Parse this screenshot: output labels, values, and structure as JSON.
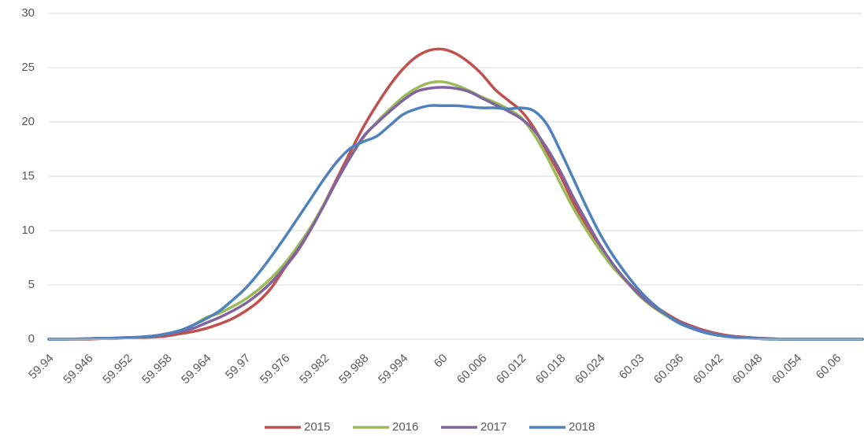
{
  "chart_data": {
    "type": "line",
    "categories": [
      "59.94",
      null,
      null,
      "59.946",
      null,
      null,
      "59.952",
      null,
      null,
      "59.958",
      null,
      null,
      "59.964",
      null,
      null,
      "59.97",
      null,
      null,
      "59.976",
      null,
      null,
      "59.982",
      null,
      null,
      "59.988",
      null,
      null,
      "59.994",
      null,
      null,
      "60",
      null,
      null,
      "60.006",
      null,
      null,
      "60.012",
      null,
      null,
      "60.018",
      null,
      null,
      "60.024",
      null,
      null,
      "60.03",
      null,
      null,
      "60.036",
      null,
      null,
      "60.042",
      null,
      null,
      "60.048",
      null,
      null,
      "60.054",
      null,
      null,
      "60.06",
      null,
      null
    ],
    "series": [
      {
        "name": "2015",
        "color": "#c0504d",
        "values": [
          0,
          0,
          0,
          0,
          0.05,
          0.05,
          0.1,
          0.15,
          0.2,
          0.3,
          0.5,
          0.7,
          1.0,
          1.4,
          1.9,
          2.6,
          3.5,
          4.8,
          6.6,
          8.2,
          10.2,
          12.5,
          14.9,
          17.3,
          19.6,
          21.6,
          23.4,
          24.9,
          26.0,
          26.6,
          26.7,
          26.3,
          25.5,
          24.4,
          23.0,
          22.0,
          21.0,
          19.4,
          17.2,
          15.0,
          12.5,
          10.3,
          8.4,
          6.8,
          5.4,
          4.2,
          3.2,
          2.4,
          1.7,
          1.2,
          0.8,
          0.5,
          0.3,
          0.2,
          0.1,
          0.05,
          0,
          0,
          0,
          0,
          0,
          0,
          0
        ]
      },
      {
        "name": "2016",
        "color": "#9bbb59",
        "values": [
          0,
          0,
          0.02,
          0.05,
          0.08,
          0.1,
          0.15,
          0.2,
          0.3,
          0.5,
          0.8,
          1.3,
          2.0,
          2.4,
          3.0,
          3.7,
          4.6,
          5.7,
          7.0,
          8.6,
          10.4,
          12.5,
          14.7,
          16.8,
          18.6,
          20.0,
          21.2,
          22.3,
          23.1,
          23.6,
          23.7,
          23.4,
          22.9,
          22.3,
          21.8,
          21.2,
          20.4,
          18.8,
          16.7,
          14.3,
          12.0,
          10.0,
          8.2,
          6.6,
          5.3,
          4.0,
          3.0,
          2.2,
          1.5,
          1.0,
          0.7,
          0.4,
          0.25,
          0.15,
          0.1,
          0.05,
          0,
          0,
          0,
          0,
          0,
          0,
          0
        ]
      },
      {
        "name": "2017",
        "color": "#8064a2",
        "values": [
          0,
          0,
          0.02,
          0.05,
          0.08,
          0.1,
          0.15,
          0.2,
          0.3,
          0.5,
          0.7,
          1.0,
          1.5,
          2.0,
          2.6,
          3.3,
          4.2,
          5.3,
          6.7,
          8.3,
          10.2,
          12.4,
          14.7,
          16.8,
          18.7,
          19.9,
          21.0,
          22.0,
          22.8,
          23.1,
          23.2,
          23.1,
          22.8,
          22.2,
          21.6,
          21.0,
          20.3,
          19.2,
          17.5,
          15.4,
          13.0,
          10.8,
          8.7,
          6.9,
          5.4,
          4.1,
          3.1,
          2.3,
          1.6,
          1.1,
          0.7,
          0.4,
          0.25,
          0.15,
          0.1,
          0.05,
          0,
          0,
          0,
          0,
          0,
          0,
          0
        ]
      },
      {
        "name": "2018",
        "color": "#4f81bd",
        "values": [
          0,
          0,
          0.02,
          0.05,
          0.08,
          0.1,
          0.15,
          0.2,
          0.3,
          0.5,
          0.8,
          1.3,
          1.9,
          2.6,
          3.6,
          4.7,
          6.1,
          7.7,
          9.4,
          11.2,
          13.0,
          14.8,
          16.4,
          17.6,
          18.2,
          18.7,
          19.7,
          20.7,
          21.2,
          21.5,
          21.5,
          21.5,
          21.4,
          21.3,
          21.3,
          21.2,
          21.3,
          21.0,
          19.7,
          17.3,
          14.7,
          12.1,
          9.7,
          7.7,
          6.0,
          4.5,
          3.3,
          2.3,
          1.5,
          1.0,
          0.6,
          0.35,
          0.2,
          0.1,
          0.05,
          0,
          0,
          0,
          0,
          0,
          0,
          0,
          0
        ]
      }
    ],
    "ylim": [
      0,
      30
    ],
    "yticks": [
      0,
      5,
      10,
      15,
      20,
      25,
      30
    ],
    "grid": true,
    "legend": "bottom"
  }
}
